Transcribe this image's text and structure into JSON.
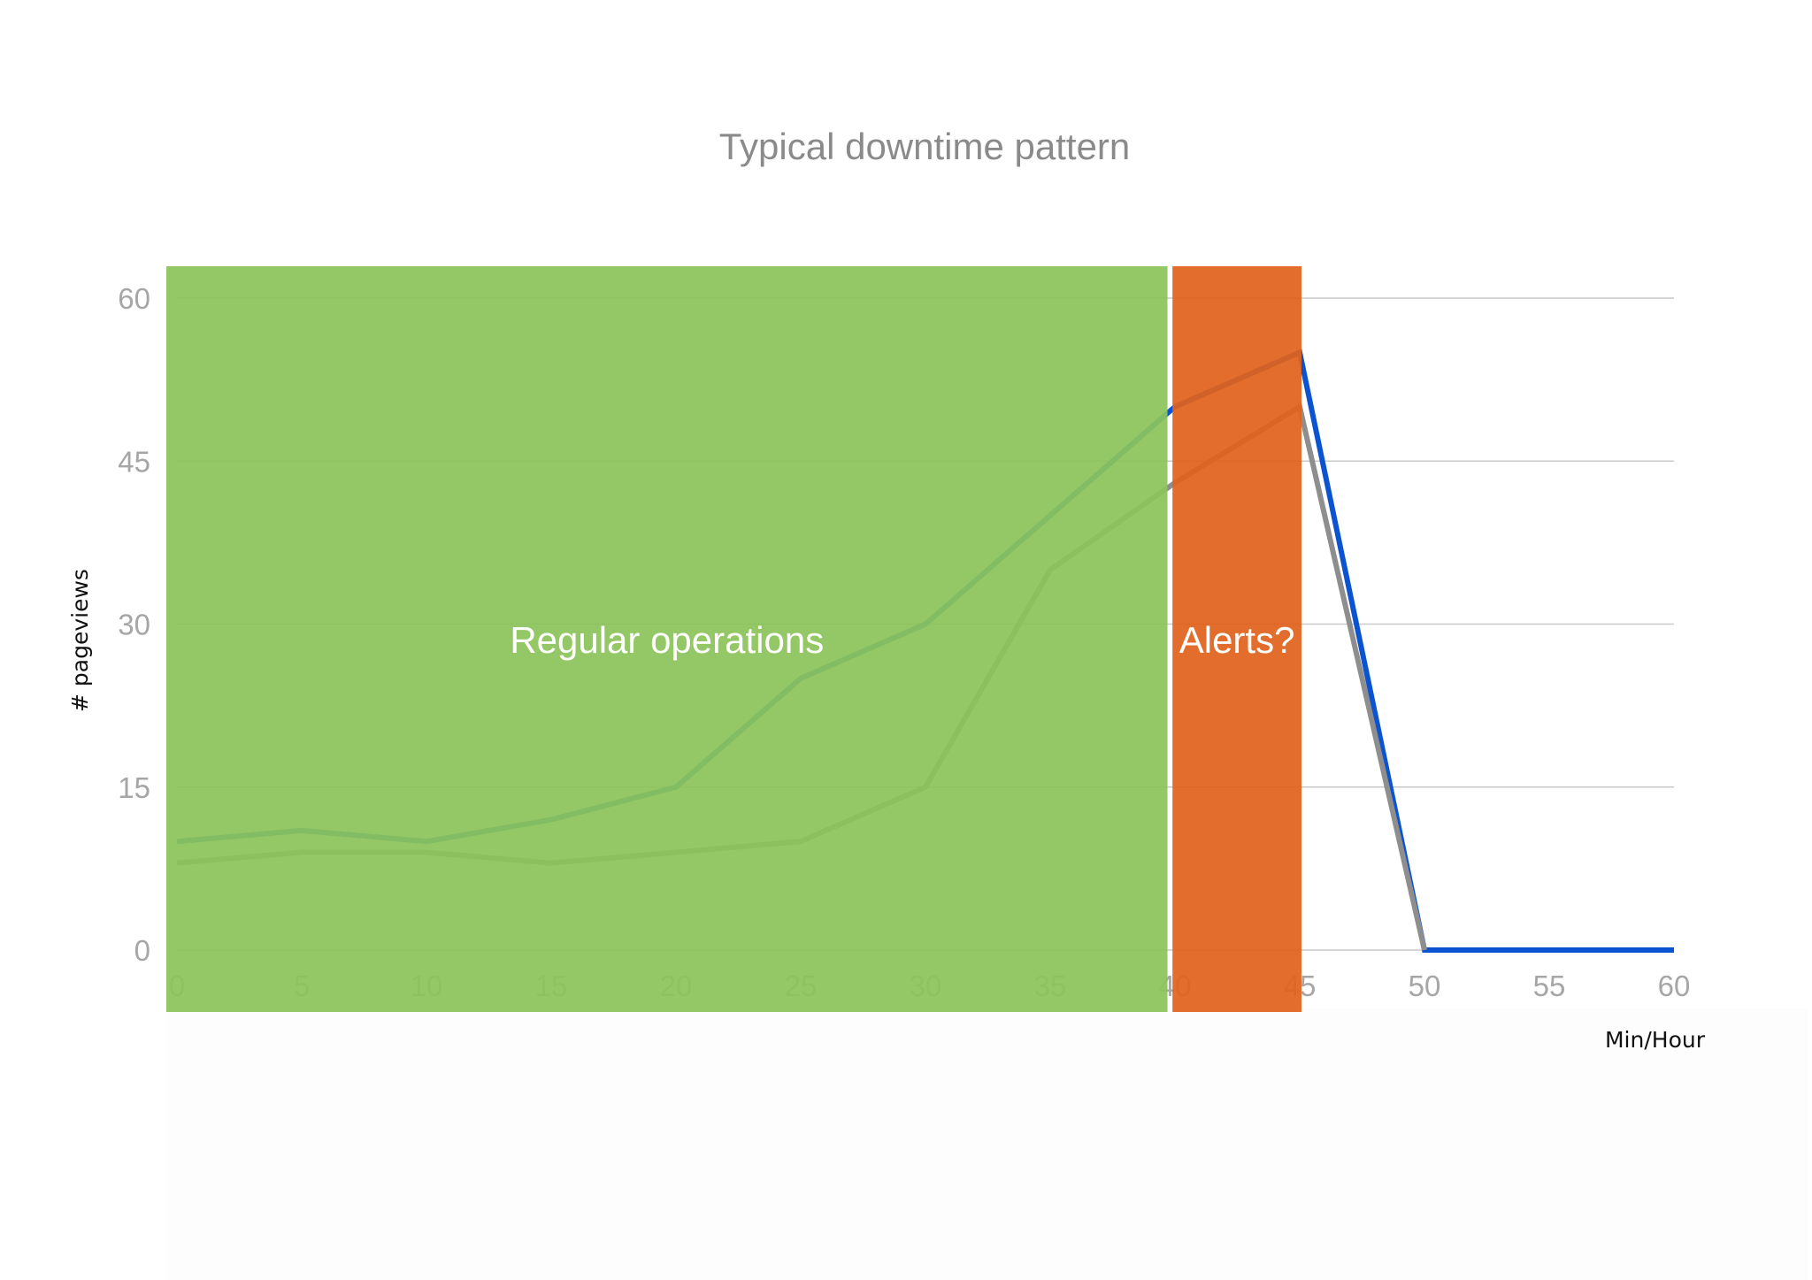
{
  "chart_data": {
    "type": "line",
    "title": "Typical downtime pattern",
    "xlabel": "Min/Hour",
    "ylabel": "# pageviews",
    "x": [
      0,
      5,
      10,
      15,
      20,
      25,
      30,
      35,
      40,
      45,
      50,
      55,
      60
    ],
    "x_ticks": [
      "0",
      "5",
      "10",
      "15",
      "20",
      "25",
      "30",
      "35",
      "40",
      "45",
      "50",
      "55",
      "60"
    ],
    "y_ticks": [
      "0",
      "15",
      "30",
      "45",
      "60"
    ],
    "xlim": [
      0,
      60
    ],
    "ylim": [
      0,
      60
    ],
    "grid": true,
    "series": [
      {
        "color": "#0b53d0",
        "points": [
          [
            0,
            10
          ],
          [
            5,
            11
          ],
          [
            10,
            10
          ],
          [
            15,
            12
          ],
          [
            20,
            15
          ],
          [
            25,
            25
          ],
          [
            30,
            30
          ],
          [
            35,
            40
          ],
          [
            40,
            50
          ],
          [
            45,
            55
          ],
          [
            50,
            0
          ],
          [
            55,
            0
          ],
          [
            60,
            0
          ]
        ]
      },
      {
        "color": "#8e8e8e",
        "points": [
          [
            0,
            8
          ],
          [
            5,
            9
          ],
          [
            10,
            9
          ],
          [
            15,
            8
          ],
          [
            20,
            9
          ],
          [
            25,
            10
          ],
          [
            30,
            15
          ],
          [
            35,
            35
          ],
          [
            40,
            43
          ],
          [
            45,
            50
          ],
          [
            50,
            0
          ]
        ]
      }
    ],
    "regions": [
      {
        "label": "Regular operations",
        "x_range": [
          0,
          39.7
        ],
        "color": "#8cc45a"
      },
      {
        "label": "Alerts?",
        "x_range": [
          39.9,
          45
        ],
        "color": "#e0621c"
      }
    ]
  }
}
